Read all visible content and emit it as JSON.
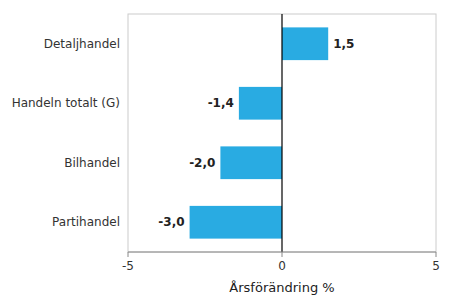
{
  "chart_data": {
    "type": "bar",
    "orientation": "horizontal",
    "categories": [
      "Partihandel",
      "Bilhandel",
      "Handeln totalt (G)",
      "Detaljhandel"
    ],
    "values": [
      -3.0,
      -2.0,
      -1.4,
      1.5
    ],
    "value_labels": [
      "-3,0",
      "-2,0",
      "-1,4",
      "1,5"
    ],
    "data_labels": true,
    "color": "#29ABE2",
    "xlabel": "Årsförändring %",
    "xlim": [
      -5,
      5
    ],
    "xticks": [
      -5,
      0,
      5
    ],
    "grid": false
  }
}
